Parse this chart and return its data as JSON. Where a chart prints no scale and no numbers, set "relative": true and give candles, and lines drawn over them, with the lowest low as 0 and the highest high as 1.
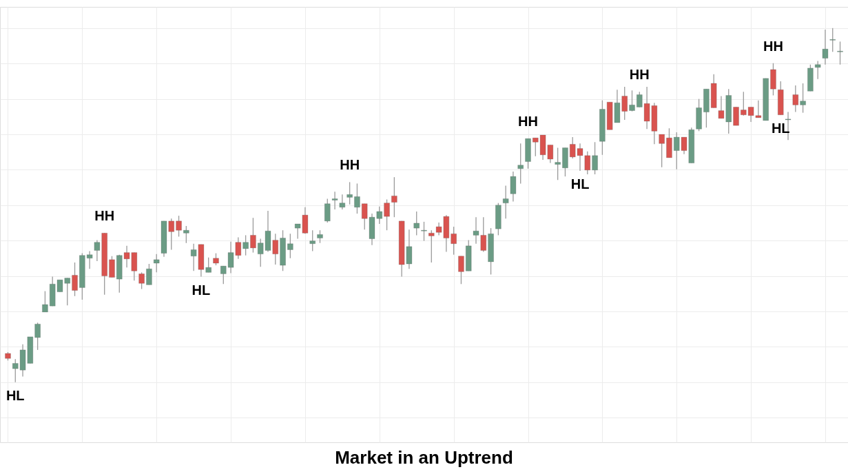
{
  "chart_data": {
    "type": "candlestick",
    "title": "Market in an Uptrend",
    "relative": true,
    "tick_labels": false,
    "grid": true,
    "colors": [
      "#d9534f",
      "#6b9c85",
      "#6b9c85",
      "#6b9c85",
      "#6b9c85",
      "#6b9c85",
      "#6b9c85",
      "#6b9c85",
      "#6b9c85",
      "#d9534f",
      "#6b9c85",
      "#6b9c85",
      "#6b9c85",
      "#d9534f",
      "#d9534f",
      "#6b9c85",
      "#d9534f",
      "#d9534f",
      "#d9534f",
      "#6b9c85",
      "#6b9c85",
      "#6b9c85",
      "#d9534f",
      "#d9534f",
      "#6b9c85",
      "#6b9c85",
      "#d9534f",
      "#6b9c85",
      "#d9534f",
      "#6b9c85",
      "#6b9c85",
      "#d9534f",
      "#6b9c85",
      "#d9534f",
      "#6b9c85",
      "#6b9c85",
      "#d9534f",
      "#6b9c85",
      "#6b9c85",
      "#6b9c85",
      "#d9534f",
      "#6b9c85",
      "#6b9c85",
      "#6b9c85",
      "#6b9c85",
      "#6b9c85",
      "#6b9c85",
      "#6b9c85",
      "#d9534f",
      "#6b9c85",
      "#6b9c85",
      "#d9534f",
      "#d9534f",
      "#d9534f",
      "#6b9c85",
      "#6b9c85",
      "#6b9c85",
      "#d9534f",
      "#d9534f",
      "#d9534f",
      "#d9534f",
      "#d9534f",
      "#6b9c85",
      "#6b9c85",
      "#d9534f",
      "#6b9c85",
      "#6b9c85",
      "#6b9c85",
      "#6b9c85",
      "#6b9c85",
      "#6b9c85",
      "#d9534f",
      "#d9534f",
      "#d9534f",
      "#6b9c85",
      "#6b9c85",
      "#d9534f",
      "#d9534f",
      "#d9534f",
      "#6b9c85",
      "#6b9c85",
      "#d9534f",
      "#6b9c85",
      "#d9534f",
      "#6b9c85",
      "#6b9c85",
      "#d9534f",
      "#d9534f",
      "#d9534f",
      "#d9534f",
      "#6b9c85",
      "#d9534f",
      "#6b9c85",
      "#6b9c85",
      "#6b9c85",
      "#d9534f",
      "#d9534f",
      "#6b9c85",
      "#d9534f",
      "#d9534f",
      "#d9534f",
      "#d9534f",
      "#6b9c85",
      "#d9534f",
      "#d9534f",
      "#6b9c85",
      "#d9534f",
      "#6b9c85",
      "#6b9c85",
      "#6b9c85",
      "#6b9c85",
      "#6b9c85",
      "#6b9c85"
    ],
    "categories": [
      null,
      null,
      null,
      null,
      null,
      null,
      null,
      null,
      null,
      null,
      null,
      null,
      null,
      null,
      null,
      null,
      null,
      null,
      null,
      null,
      null,
      null,
      null,
      null,
      null,
      null,
      null,
      null,
      null,
      null,
      null,
      null,
      null,
      null,
      null,
      null,
      null,
      null,
      null,
      null,
      null,
      null,
      null,
      null,
      null,
      null,
      null,
      null,
      null,
      null,
      null,
      null,
      null,
      null,
      null,
      null,
      null,
      null,
      null,
      null,
      null,
      null,
      null,
      null,
      null,
      null,
      null,
      null,
      null,
      null,
      null,
      null,
      null,
      null,
      null,
      null,
      null,
      null,
      null,
      null,
      null,
      null,
      null,
      null,
      null,
      null,
      null,
      null,
      null,
      null,
      null,
      null,
      null,
      null,
      null,
      null,
      null,
      null,
      null,
      null,
      null,
      null,
      null,
      null,
      null,
      null,
      null,
      null,
      null,
      null,
      null,
      null,
      null
    ],
    "ohlc": [
      [
        0.081,
        0.085,
        0.061,
        0.067
      ],
      [
        0.038,
        0.065,
        0.0,
        0.053
      ],
      [
        0.034,
        0.107,
        0.016,
        0.091
      ],
      [
        0.053,
        0.128,
        0.053,
        0.128
      ],
      [
        0.126,
        0.168,
        0.091,
        0.164
      ],
      [
        0.198,
        0.257,
        0.198,
        0.219
      ],
      [
        0.215,
        0.298,
        0.215,
        0.277
      ],
      [
        0.255,
        0.289,
        0.255,
        0.289
      ],
      [
        0.279,
        0.294,
        0.217,
        0.294
      ],
      [
        0.302,
        0.338,
        0.243,
        0.259
      ],
      [
        0.267,
        0.364,
        0.233,
        0.358
      ],
      [
        0.35,
        0.37,
        0.32,
        0.36
      ],
      [
        0.372,
        0.401,
        0.342,
        0.395
      ],
      [
        0.421,
        0.421,
        0.247,
        0.3
      ],
      [
        0.346,
        0.356,
        0.296,
        0.296
      ],
      [
        0.291,
        0.36,
        0.253,
        0.358
      ],
      [
        0.366,
        0.385,
        0.324,
        0.348
      ],
      [
        0.366,
        0.366,
        0.287,
        0.314
      ],
      [
        0.306,
        0.31,
        0.263,
        0.279
      ],
      [
        0.275,
        0.334,
        0.275,
        0.32
      ],
      [
        0.336,
        0.362,
        0.31,
        0.346
      ],
      [
        0.364,
        0.455,
        0.354,
        0.455
      ],
      [
        0.455,
        0.462,
        0.374,
        0.425
      ],
      [
        0.455,
        0.47,
        0.411,
        0.429
      ],
      [
        0.421,
        0.441,
        0.393,
        0.429
      ],
      [
        0.356,
        0.391,
        0.314,
        0.374
      ],
      [
        0.389,
        0.389,
        0.298,
        0.318
      ],
      [
        0.31,
        0.352,
        0.31,
        0.324
      ],
      [
        0.35,
        0.364,
        0.33,
        0.336
      ],
      [
        0.306,
        0.328,
        0.277,
        0.328
      ],
      [
        0.324,
        0.397,
        0.308,
        0.366
      ],
      [
        0.395,
        0.409,
        0.348,
        0.358
      ],
      [
        0.377,
        0.415,
        0.358,
        0.395
      ],
      [
        0.415,
        0.464,
        0.366,
        0.379
      ],
      [
        0.362,
        0.405,
        0.326,
        0.393
      ],
      [
        0.372,
        0.484,
        0.368,
        0.427
      ],
      [
        0.401,
        0.419,
        0.332,
        0.362
      ],
      [
        0.33,
        0.429,
        0.314,
        0.407
      ],
      [
        0.374,
        0.419,
        0.35,
        0.391
      ],
      [
        0.435,
        0.447,
        0.405,
        0.447
      ],
      [
        0.472,
        0.494,
        0.419,
        0.421
      ],
      [
        0.391,
        0.429,
        0.37,
        0.399
      ],
      [
        0.407,
        0.429,
        0.393,
        0.417
      ],
      [
        0.455,
        0.518,
        0.451,
        0.504
      ],
      [
        0.514,
        0.538,
        0.488,
        0.518
      ],
      [
        0.494,
        0.53,
        0.488,
        0.506
      ],
      [
        0.522,
        0.565,
        0.502,
        0.53
      ],
      [
        0.494,
        0.561,
        0.476,
        0.524
      ],
      [
        0.504,
        0.504,
        0.431,
        0.462
      ],
      [
        0.405,
        0.476,
        0.387,
        0.466
      ],
      [
        0.462,
        0.496,
        0.447,
        0.482
      ],
      [
        0.506,
        0.516,
        0.429,
        0.468
      ],
      [
        0.526,
        0.579,
        0.466,
        0.508
      ],
      [
        0.455,
        0.455,
        0.298,
        0.332
      ],
      [
        0.334,
        0.431,
        0.32,
        0.383
      ],
      [
        0.435,
        0.482,
        0.415,
        0.449
      ],
      [
        0.427,
        0.453,
        0.399,
        0.429
      ],
      [
        0.421,
        0.429,
        0.338,
        0.413
      ],
      [
        0.439,
        0.451,
        0.415,
        0.423
      ],
      [
        0.468,
        0.472,
        0.368,
        0.407
      ],
      [
        0.419,
        0.439,
        0.36,
        0.391
      ],
      [
        0.356,
        0.356,
        0.277,
        0.312
      ],
      [
        0.314,
        0.401,
        0.314,
        0.385
      ],
      [
        0.415,
        0.466,
        0.391,
        0.427
      ],
      [
        0.415,
        0.466,
        0.368,
        0.372
      ],
      [
        0.34,
        0.435,
        0.304,
        0.419
      ],
      [
        0.433,
        0.506,
        0.415,
        0.5
      ],
      [
        0.506,
        0.555,
        0.462,
        0.518
      ],
      [
        0.532,
        0.595,
        0.51,
        0.581
      ],
      [
        0.603,
        0.674,
        0.561,
        0.613
      ],
      [
        0.623,
        0.688,
        0.603,
        0.688
      ],
      [
        0.69,
        0.69,
        0.638,
        0.678
      ],
      [
        0.698,
        0.698,
        0.628,
        0.642
      ],
      [
        0.67,
        0.67,
        0.619,
        0.63
      ],
      [
        0.615,
        0.662,
        0.571,
        0.621
      ],
      [
        0.605,
        0.662,
        0.581,
        0.662
      ],
      [
        0.672,
        0.692,
        0.632,
        0.636
      ],
      [
        0.66,
        0.674,
        0.597,
        0.64
      ],
      [
        0.64,
        0.652,
        0.587,
        0.599
      ],
      [
        0.599,
        0.678,
        0.587,
        0.64
      ],
      [
        0.68,
        0.796,
        0.642,
        0.771
      ],
      [
        0.791,
        0.791,
        0.713,
        0.713
      ],
      [
        0.733,
        0.826,
        0.733,
        0.789
      ],
      [
        0.808,
        0.834,
        0.741,
        0.765
      ],
      [
        0.767,
        0.824,
        0.765,
        0.783
      ],
      [
        0.777,
        0.82,
        0.777,
        0.812
      ],
      [
        0.787,
        0.834,
        0.715,
        0.737
      ],
      [
        0.781,
        0.789,
        0.672,
        0.709
      ],
      [
        0.7,
        0.7,
        0.607,
        0.674
      ],
      [
        0.69,
        0.717,
        0.634,
        0.634
      ],
      [
        0.654,
        0.706,
        0.601,
        0.692
      ],
      [
        0.692,
        0.692,
        0.644,
        0.654
      ],
      [
        0.619,
        0.719,
        0.619,
        0.713
      ],
      [
        0.715,
        0.8,
        0.709,
        0.775
      ],
      [
        0.763,
        0.828,
        0.719,
        0.828
      ],
      [
        0.844,
        0.87,
        0.775,
        0.775
      ],
      [
        0.767,
        0.808,
        0.745,
        0.745
      ],
      [
        0.735,
        0.828,
        0.702,
        0.81
      ],
      [
        0.777,
        0.777,
        0.725,
        0.725
      ],
      [
        0.769,
        0.82,
        0.753,
        0.755
      ],
      [
        0.777,
        0.777,
        0.735,
        0.753
      ],
      [
        0.753,
        0.796,
        0.747,
        0.747
      ],
      [
        0.739,
        0.858,
        0.739,
        0.858
      ],
      [
        0.883,
        0.901,
        0.81,
        0.828
      ],
      [
        0.826,
        0.85,
        0.755,
        0.755
      ],
      [
        0.741,
        0.763,
        0.684,
        0.743
      ],
      [
        0.812,
        0.838,
        0.763,
        0.783
      ],
      [
        0.783,
        0.844,
        0.761,
        0.794
      ],
      [
        0.822,
        0.897,
        0.822,
        0.887
      ],
      [
        0.889,
        0.907,
        0.856,
        0.897
      ],
      [
        0.915,
        0.996,
        0.897,
        0.941
      ],
      [
        0.966,
        1.0,
        0.933,
        0.968
      ],
      [
        0.933,
        0.962,
        0.897,
        0.935
      ]
    ],
    "annotations": [
      {
        "text": "HL",
        "y": 0.0
      },
      {
        "text": "HH",
        "y": 0.421
      },
      {
        "text": "HL",
        "y": 0.298
      },
      {
        "text": "HH",
        "y": 0.565
      },
      {
        "text": "HH",
        "y": 0.688
      },
      {
        "text": "HL",
        "y": 0.597
      },
      {
        "text": "HH",
        "y": 0.82
      },
      {
        "text": "HH",
        "y": 0.901
      },
      {
        "text": "HL",
        "y": 0.755
      }
    ]
  }
}
